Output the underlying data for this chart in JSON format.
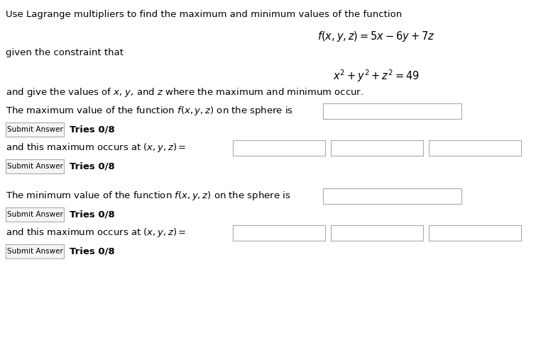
{
  "bg_color": "#ffffff",
  "text_color": "#000000",
  "line1": "Use Lagrange multipliers to find the maximum and minimum values of the function",
  "formula1": "$f(x, y, z) = 5x - 6y + 7z$",
  "line2": "given the constraint that",
  "formula2": "$x^2 + y^2 + z^2 = 49$",
  "line3": "and give the values of $x$, $y$, and $z$ where the maximum and minimum occur.",
  "line4": "The maximum value of the function $f(x, y, z)$ on the sphere is",
  "line5": "and this maximum occurs at $(x, y, z) =$",
  "line6": "The minimum value of the function $f(x, y, z)$ on the sphere is",
  "line7": "and this maximum occurs at $(x, y, z) =$",
  "submit_label": "Submit Answer",
  "tries_label": "Tries 0/8",
  "fontsize_body": 9.5,
  "fontsize_formula": 10.5,
  "fontsize_button": 7.5,
  "fontsize_tries": 9.5
}
